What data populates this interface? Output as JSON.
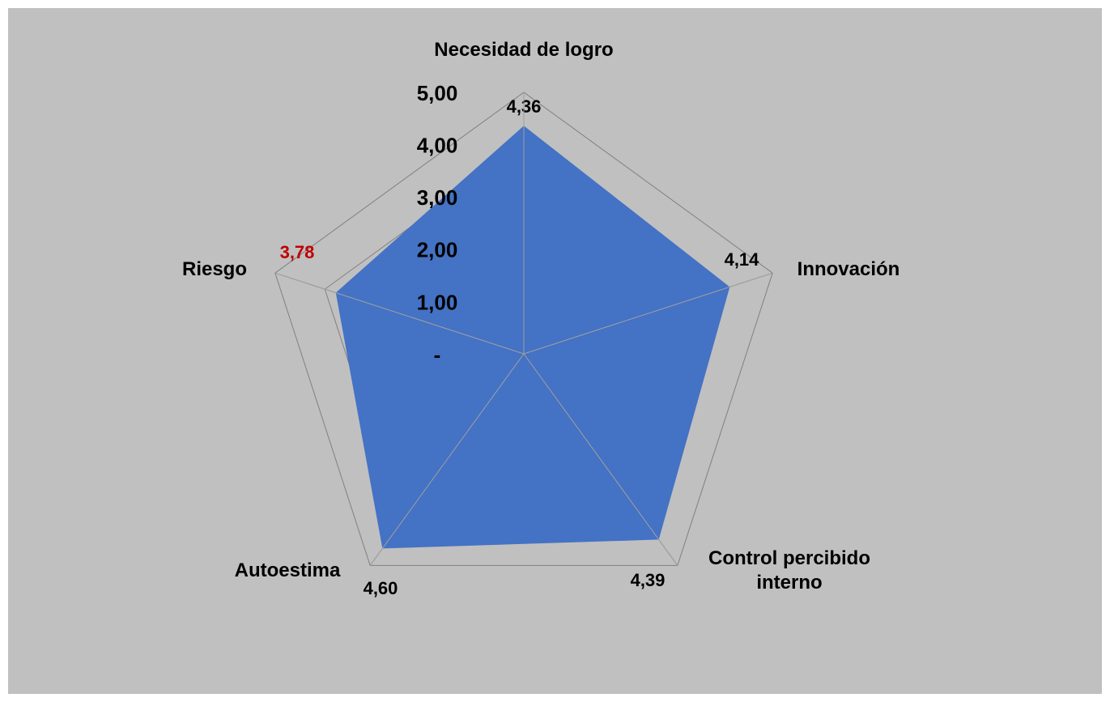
{
  "chart_data": {
    "type": "radar",
    "categories": [
      "Necesidad de logro",
      "Innovación",
      "Control percibido interno",
      "Autoestima",
      "Riesgo"
    ],
    "series": [
      {
        "name": null,
        "color": "#4472c4",
        "values": [
          4.36,
          4.14,
          4.39,
          4.6,
          3.78
        ],
        "value_labels": [
          "4,36",
          "4,14",
          "4,39",
          "4,60",
          "3,78"
        ],
        "value_label_colors": [
          "#000000",
          "#000000",
          "#000000",
          "#000000",
          "#c00000"
        ]
      }
    ],
    "ylim": [
      0,
      5
    ],
    "yticks": [
      {
        "value": 0,
        "label": "-"
      },
      {
        "value": 1,
        "label": "1,00"
      },
      {
        "value": 2,
        "label": "2,00"
      },
      {
        "value": 3,
        "label": "3,00"
      },
      {
        "value": 4,
        "label": "4,00"
      },
      {
        "value": 5,
        "label": "5,00"
      }
    ],
    "grid": true,
    "background": "#c0c0c0"
  }
}
